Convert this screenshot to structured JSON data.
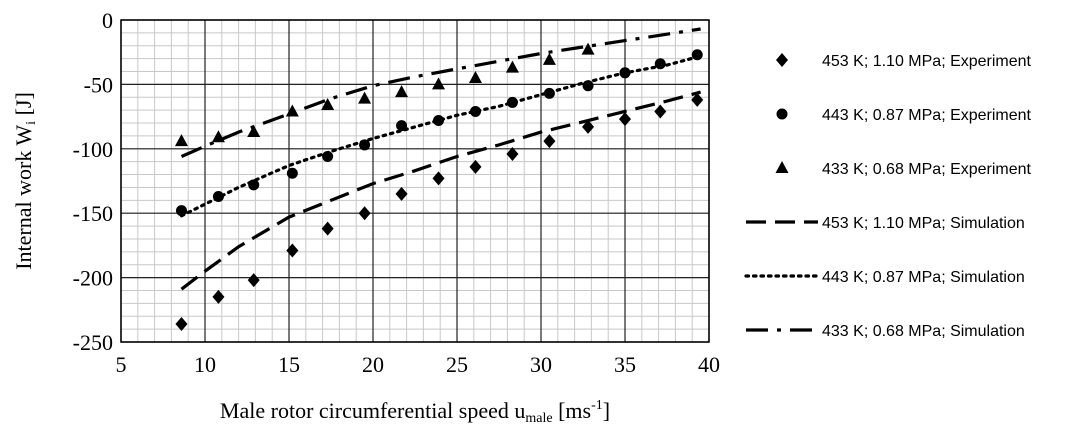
{
  "chart_data": {
    "type": "scatter",
    "xlabel": {
      "main": "Male rotor circumferential speed u",
      "sub": "male",
      "rest": " [ms",
      "sup": "-1",
      "end": "]"
    },
    "ylabel": {
      "main": "Internal work W",
      "sub": "i",
      "end": " [J]"
    },
    "xlim": [
      5,
      40
    ],
    "ylim": [
      -250,
      0
    ],
    "xticks": [
      5,
      10,
      15,
      20,
      25,
      30,
      35,
      40
    ],
    "yticks": [
      0,
      -50,
      -100,
      -150,
      -200,
      -250
    ],
    "grid": true,
    "legend_position": "right",
    "series": [
      {
        "name": "453 K; 1.10 MPa; Experiment",
        "kind": "marker",
        "marker": "diamond",
        "x": [
          8.6,
          10.8,
          12.9,
          15.2,
          17.3,
          19.5,
          21.7,
          23.9,
          26.1,
          28.3,
          30.5,
          32.8,
          35.0,
          37.1,
          39.3
        ],
        "y": [
          -236,
          -215,
          -202,
          -179,
          -162,
          -150,
          -135,
          -123,
          -114,
          -104,
          -94,
          -83,
          -77,
          -71,
          -62
        ]
      },
      {
        "name": "443 K; 0.87 MPa; Experiment",
        "kind": "marker",
        "marker": "circle",
        "x": [
          8.6,
          10.8,
          12.9,
          15.2,
          17.3,
          19.5,
          21.7,
          23.9,
          26.1,
          28.3,
          30.5,
          32.8,
          35.0,
          37.1,
          39.3
        ],
        "y": [
          -148,
          -137,
          -128,
          -119,
          -106,
          -97,
          -82,
          -78,
          -71,
          -64,
          -57,
          -51,
          -41,
          -34,
          -27
        ]
      },
      {
        "name": "433 K; 0.68 MPa; Experiment",
        "kind": "marker",
        "marker": "triangle",
        "x": [
          8.6,
          10.8,
          12.9,
          15.2,
          17.3,
          19.5,
          21.7,
          23.9,
          26.1,
          28.3,
          30.5,
          32.8
        ],
        "y": [
          -94,
          -91,
          -87,
          -71,
          -66,
          -61,
          -56,
          -50,
          -45,
          -37,
          -31,
          -23
        ]
      },
      {
        "name": "453 K; 1.10 MPa; Simulation",
        "kind": "line",
        "dash": "dashed",
        "x": [
          8.6,
          10,
          12,
          15,
          17.5,
          20,
          22.5,
          25,
          27.5,
          30,
          32.5,
          35,
          37.5,
          39.5
        ],
        "y": [
          -209,
          -195,
          -176,
          -153,
          -140,
          -127,
          -117,
          -106,
          -97,
          -87,
          -79,
          -71,
          -63,
          -56
        ]
      },
      {
        "name": "443 K; 0.87 MPa; Simulation",
        "kind": "line",
        "dash": "dotted",
        "x": [
          8.6,
          10,
          12,
          15,
          17.5,
          20,
          22.5,
          25,
          27.5,
          30,
          32.5,
          35,
          37.5,
          39.5
        ],
        "y": [
          -152,
          -143,
          -130,
          -113,
          -102,
          -92,
          -83,
          -74,
          -67,
          -58,
          -49,
          -41,
          -35,
          -28
        ]
      },
      {
        "name": "433 K; 0.68 MPa; Simulation",
        "kind": "line",
        "dash": "dashdot",
        "x": [
          8.6,
          10,
          12,
          15,
          17.5,
          20,
          22.5,
          25,
          27.5,
          30,
          32.5,
          35,
          37.5,
          39.5
        ],
        "y": [
          -106,
          -98,
          -87,
          -73,
          -61,
          -51,
          -44,
          -38,
          -32,
          -26,
          -21,
          -16,
          -11,
          -7
        ]
      }
    ]
  }
}
